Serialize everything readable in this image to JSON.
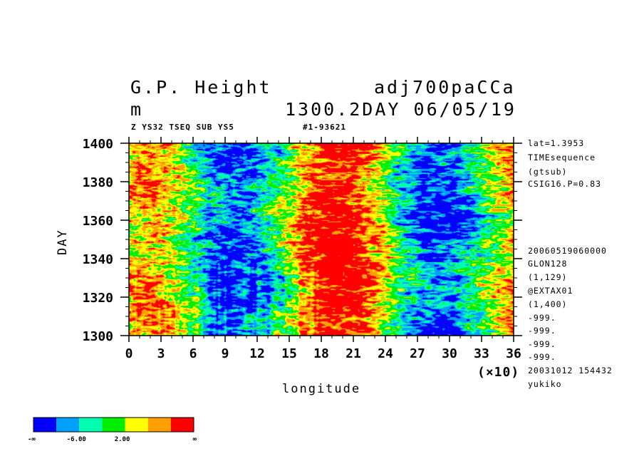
{
  "header": {
    "title_left": "G.P. Height",
    "title_right": "adj700paCCa",
    "unit": "m",
    "time_label": "1300.2DAY 06/05/19",
    "sub_left": "Z YS32 TSEQ SUB YS5",
    "sub_right": "#1-93621"
  },
  "side_info": {
    "top": [
      "lat=1.3953",
      "TIMEsequence",
      "(gtsub)",
      "CSIG16.P=0.83"
    ],
    "bottom": [
      "20060519060000",
      "GLON128",
      "(1,129)",
      "@EXTAX01",
      "(1,400)",
      "-999.",
      "-999.",
      "-999.",
      "-999.",
      "20031012 154432",
      "yukiko"
    ]
  },
  "colorbar": {
    "colors": [
      "#0000ff",
      "#00a0ff",
      "#00ffb0",
      "#00ee00",
      "#ffff00",
      "#ffa000",
      "#ff0000"
    ],
    "labels": [
      "-∞",
      "-6.00",
      "2.00",
      "∞"
    ]
  },
  "chart_data": {
    "type": "heatmap",
    "title": "G.P. Height",
    "xlabel": "longitude",
    "ylabel": "DAY",
    "x_multiplier": "(×10)",
    "xlim": [
      0,
      36
    ],
    "ylim": [
      1300,
      1400
    ],
    "x_ticks": [
      "0",
      "3",
      "6",
      "9",
      "12",
      "15",
      "18",
      "21",
      "24",
      "27",
      "30",
      "33",
      "36"
    ],
    "y_ticks": [
      "1300",
      "1320",
      "1340",
      "1360",
      "1380",
      "1400"
    ],
    "color_levels": [
      "-∞",
      "-6.00",
      "2.00",
      "∞"
    ],
    "description_bands": [
      {
        "x_range": [
          0,
          4
        ],
        "tendency": "high"
      },
      {
        "x_range": [
          6,
          12
        ],
        "tendency": "low"
      },
      {
        "x_range": [
          16,
          22
        ],
        "tendency": "high"
      },
      {
        "x_range": [
          24,
          31
        ],
        "tendency": "low"
      },
      {
        "x_range": [
          33,
          36
        ],
        "tendency": "mixed"
      }
    ]
  }
}
